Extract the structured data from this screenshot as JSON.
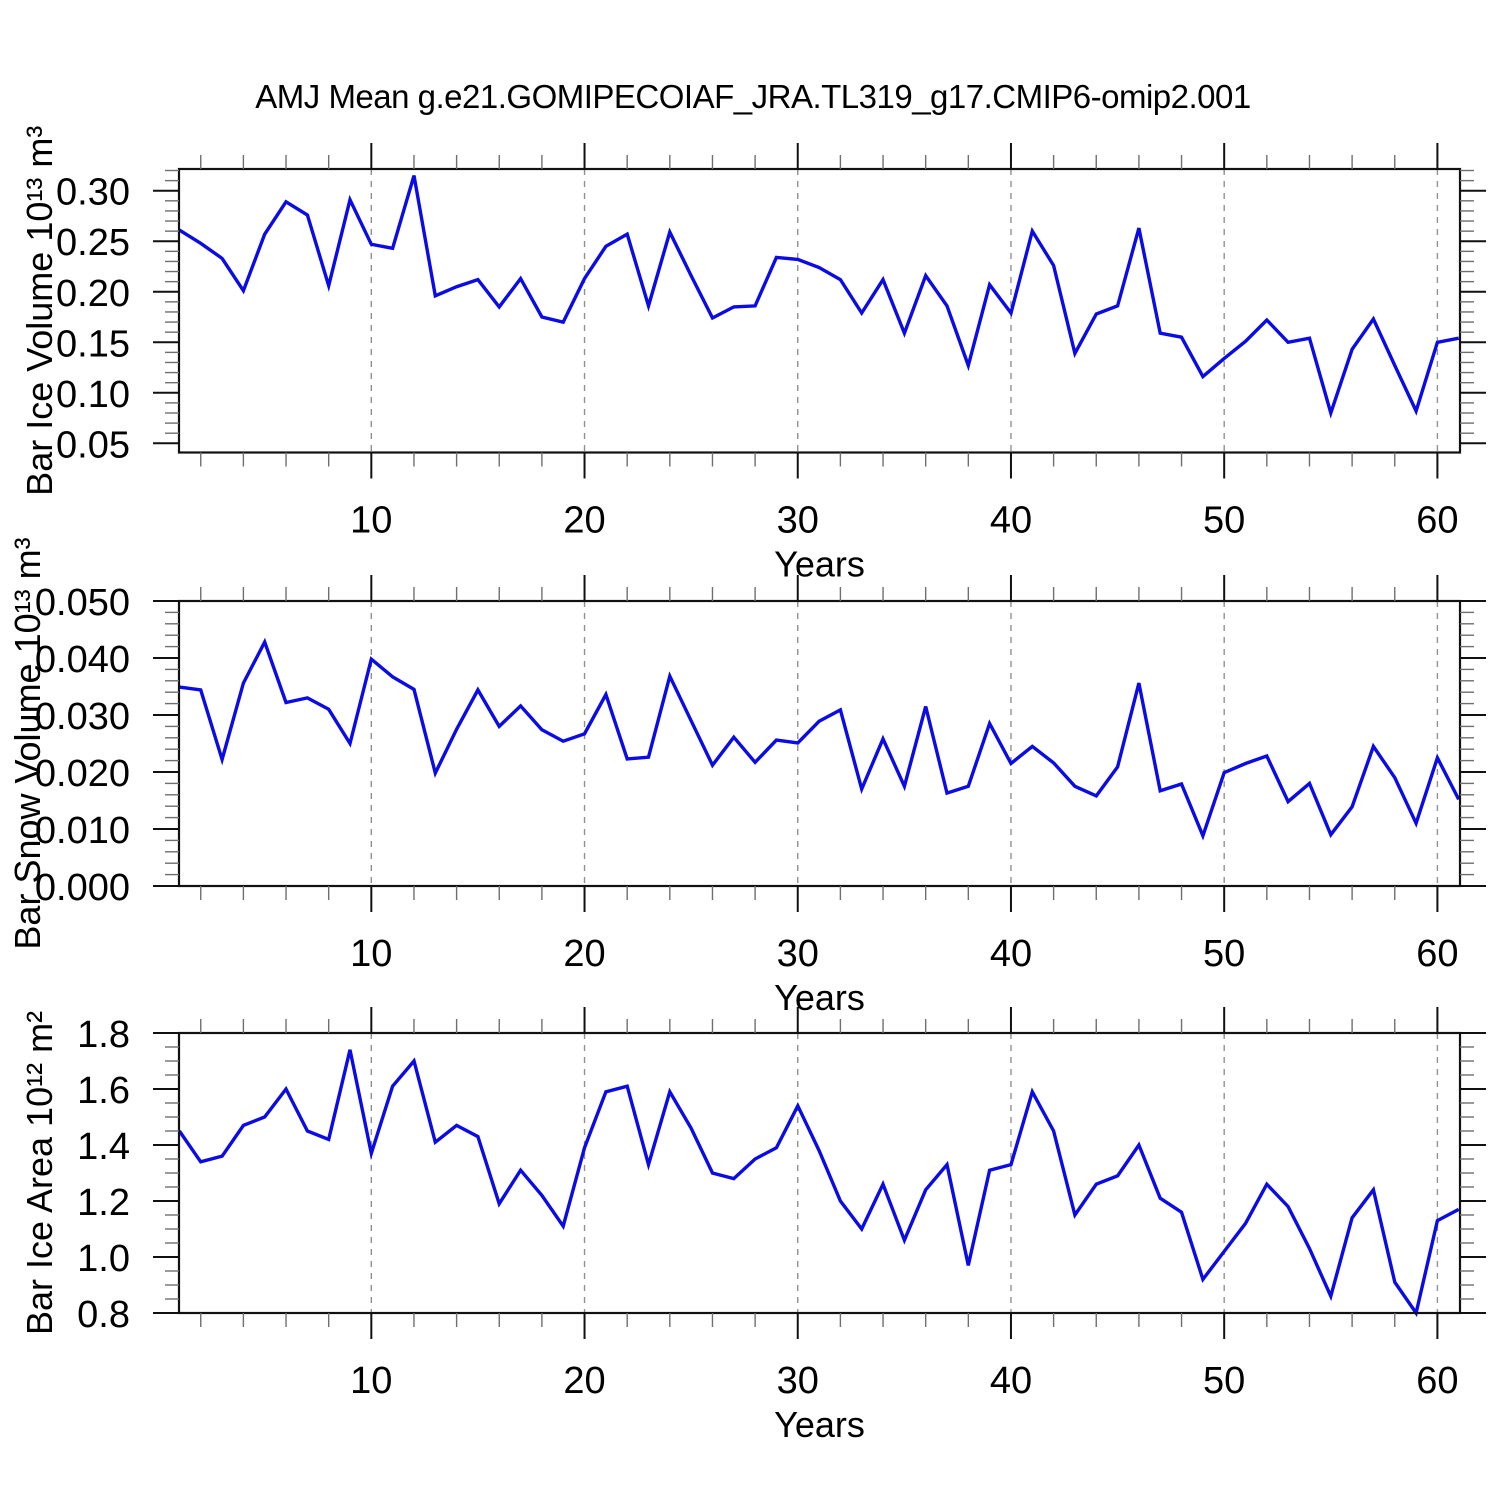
{
  "title": "AMJ Mean g.e21.GOMIPECOIAF_JRA.TL319_g17.CMIP6-omip2.001",
  "colors": {
    "line": "#0b0be6",
    "axis": "#111111",
    "minor_tick": "#6f6f6f",
    "gridline": "#909090",
    "background": "#ffffff"
  },
  "x_axis": {
    "label": "Years",
    "range": [
      0.98,
      61.06
    ],
    "major_ticks": [
      10,
      20,
      30,
      40,
      50,
      60
    ],
    "tick_labels": [
      "10",
      "20",
      "30",
      "40",
      "50",
      "60"
    ],
    "minor_start": 2,
    "minor_step": 2,
    "grid_dashed": true
  },
  "chart_data": [
    {
      "type": "line",
      "id": "bar-ice-volume",
      "ylabel": "Bar Ice Volume 10¹³ m³",
      "xlabel": "Years",
      "ylim": [
        0.0409,
        0.3215
      ],
      "yticks": [
        0.05,
        0.1,
        0.15,
        0.2,
        0.25,
        0.3
      ],
      "ytick_labels": [
        "0.05",
        "0.10",
        "0.15",
        "0.20",
        "0.25",
        "0.30"
      ],
      "y_minor_step": 0.01,
      "x_start": 1,
      "x_step": 1,
      "values": [
        0.261,
        0.248,
        0.233,
        0.201,
        0.257,
        0.289,
        0.276,
        0.206,
        0.291,
        0.247,
        0.243,
        0.315,
        0.196,
        0.205,
        0.212,
        0.185,
        0.213,
        0.175,
        0.17,
        0.213,
        0.245,
        0.257,
        0.186,
        0.259,
        0.216,
        0.174,
        0.185,
        0.186,
        0.234,
        0.232,
        0.224,
        0.212,
        0.179,
        0.212,
        0.159,
        0.216,
        0.186,
        0.127,
        0.207,
        0.179,
        0.26,
        0.226,
        0.139,
        0.178,
        0.186,
        0.263,
        0.159,
        0.155,
        0.116,
        0.134,
        0.151,
        0.172,
        0.15,
        0.154,
        0.08,
        0.143,
        0.173,
        0.127,
        0.082,
        0.15,
        0.154
      ]
    },
    {
      "type": "line",
      "id": "bar-snow-volume",
      "ylabel": "Bar Snow Volume 10¹³ m³",
      "xlabel": "Years",
      "ylim": [
        0.0,
        0.05
      ],
      "yticks": [
        0.0,
        0.01,
        0.02,
        0.03,
        0.04,
        0.05
      ],
      "ytick_labels": [
        "0.000",
        "0.010",
        "0.020",
        "0.030",
        "0.040",
        "0.050"
      ],
      "y_minor_step": 0.002,
      "x_start": 1,
      "x_step": 1,
      "values": [
        0.0349,
        0.0344,
        0.0222,
        0.0356,
        0.0428,
        0.0322,
        0.033,
        0.031,
        0.025,
        0.0398,
        0.0367,
        0.0345,
        0.0198,
        0.0275,
        0.0344,
        0.028,
        0.0316,
        0.0274,
        0.0254,
        0.0267,
        0.0336,
        0.0223,
        0.0226,
        0.0368,
        0.029,
        0.0212,
        0.0261,
        0.0217,
        0.0256,
        0.0251,
        0.0289,
        0.0309,
        0.017,
        0.0258,
        0.0175,
        0.0315,
        0.0163,
        0.0175,
        0.0285,
        0.0215,
        0.0245,
        0.0216,
        0.0175,
        0.0158,
        0.0209,
        0.0356,
        0.0167,
        0.0179,
        0.0088,
        0.0199,
        0.0215,
        0.0228,
        0.0148,
        0.018,
        0.009,
        0.0139,
        0.0245,
        0.019,
        0.011,
        0.0225,
        0.0152
      ]
    },
    {
      "type": "line",
      "id": "bar-ice-area",
      "ylabel": "Bar Ice Area 10¹² m²",
      "xlabel": "Years",
      "ylim": [
        0.8,
        1.8
      ],
      "yticks": [
        0.8,
        1.0,
        1.2,
        1.4,
        1.6,
        1.8
      ],
      "ytick_labels": [
        "0.8",
        "1.0",
        "1.2",
        "1.4",
        "1.6",
        "1.8"
      ],
      "y_minor_step": 0.05,
      "x_start": 1,
      "x_step": 1,
      "values": [
        1.45,
        1.34,
        1.36,
        1.47,
        1.5,
        1.6,
        1.45,
        1.42,
        1.74,
        1.37,
        1.61,
        1.7,
        1.41,
        1.47,
        1.43,
        1.19,
        1.31,
        1.22,
        1.11,
        1.39,
        1.59,
        1.61,
        1.33,
        1.59,
        1.46,
        1.3,
        1.28,
        1.35,
        1.39,
        1.54,
        1.38,
        1.2,
        1.1,
        1.26,
        1.06,
        1.24,
        1.33,
        0.97,
        1.31,
        1.33,
        1.59,
        1.45,
        1.15,
        1.26,
        1.29,
        1.4,
        1.21,
        1.16,
        0.92,
        1.02,
        1.12,
        1.26,
        1.18,
        1.03,
        0.86,
        1.14,
        1.24,
        0.91,
        0.8,
        1.13,
        1.17
      ]
    }
  ]
}
